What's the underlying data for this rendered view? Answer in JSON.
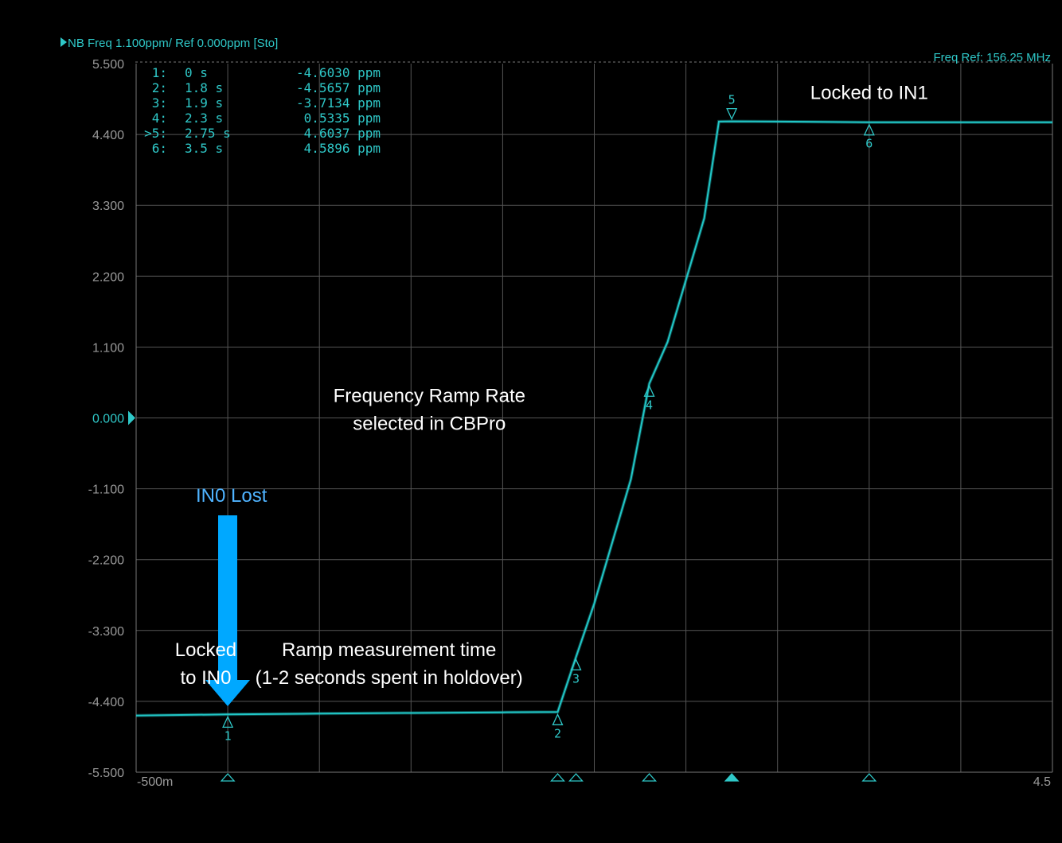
{
  "header": {
    "trace_label": "NB Freq 1.100ppm/ Ref 0.000ppm [Sto]",
    "freq_ref": "Freq Ref: 156.25 MHz"
  },
  "chart_data": {
    "type": "line",
    "title": "",
    "xlabel": "",
    "ylabel": "",
    "xlim": [
      -0.5,
      4.5
    ],
    "ylim": [
      -5.5,
      5.5
    ],
    "grid": true,
    "x_tick_labels": [
      "-500m",
      "4.5"
    ],
    "y_ticks": [
      {
        "value": 5.5,
        "label": "5.500"
      },
      {
        "value": 4.4,
        "label": "4.400"
      },
      {
        "value": 3.3,
        "label": "3.300"
      },
      {
        "value": 2.2,
        "label": "2.200"
      },
      {
        "value": 1.1,
        "label": "1.100"
      },
      {
        "value": 0.0,
        "label": "0.000"
      },
      {
        "value": -1.1,
        "label": "-1.100"
      },
      {
        "value": -2.2,
        "label": "-2.200"
      },
      {
        "value": -3.3,
        "label": "-3.300"
      },
      {
        "value": -4.4,
        "label": "-4.400"
      },
      {
        "value": -5.5,
        "label": "-5.500"
      }
    ],
    "reference_value_label": "0.000",
    "series": [
      {
        "x": [
          -0.5,
          0.0,
          0.5,
          1.0,
          1.5,
          1.8,
          1.9,
          2.0,
          2.2,
          2.3,
          2.4,
          2.6,
          2.68,
          2.75,
          3.0,
          3.5,
          4.0,
          4.5
        ],
        "y": [
          -4.62,
          -4.603,
          -4.59,
          -4.58,
          -4.57,
          -4.5657,
          -3.7134,
          -2.88,
          -0.95,
          0.5335,
          1.18,
          3.1,
          4.6,
          4.6037,
          4.6,
          4.5896,
          4.59,
          4.59
        ]
      }
    ],
    "markers": [
      {
        "id": "1",
        "label": "1:",
        "x_text": "0 s",
        "y_text": "-4.6030 ppm",
        "x": 0.0,
        "y": -4.603,
        "active": false
      },
      {
        "id": "2",
        "label": "2:",
        "x_text": "1.8 s",
        "y_text": "-4.5657 ppm",
        "x": 1.8,
        "y": -4.5657,
        "active": false
      },
      {
        "id": "3",
        "label": "3:",
        "x_text": "1.9 s",
        "y_text": "-3.7134 ppm",
        "x": 1.9,
        "y": -3.7134,
        "active": false
      },
      {
        "id": "4",
        "label": "4:",
        "x_text": "2.3 s",
        "y_text": "0.5335 ppm",
        "x": 2.3,
        "y": 0.5335,
        "active": false
      },
      {
        "id": "5",
        "label": ">5:",
        "x_text": "2.75 s",
        "y_text": "4.6037 ppm",
        "x": 2.75,
        "y": 4.6037,
        "active": true
      },
      {
        "id": "6",
        "label": "6:",
        "x_text": "3.5 s",
        "y_text": "4.5896 ppm",
        "x": 3.5,
        "y": 4.5896,
        "active": false
      }
    ],
    "annotations": [
      {
        "name": "locked-in1-annotation",
        "lines": [
          "Locked to IN1"
        ],
        "x": 3.5,
        "y": 4.95,
        "align": "middle",
        "color": "#ffffff"
      },
      {
        "name": "ramp-rate-annotation",
        "lines": [
          "Frequency Ramp Rate",
          "selected in CBPro"
        ],
        "x": 1.1,
        "y": 0.25,
        "align": "middle",
        "color": "#ffffff"
      },
      {
        "name": "in0-lost-annotation",
        "lines": [
          "IN0 Lost"
        ],
        "x": 0.02,
        "y": -1.3,
        "align": "middle",
        "color": "#4fb3ff"
      },
      {
        "name": "locked-in0-annotation",
        "lines": [
          "Locked",
          "to IN0"
        ],
        "x": -0.12,
        "y": -3.7,
        "align": "middle",
        "color": "#ffffff"
      },
      {
        "name": "ramp-measurement-annotation",
        "lines": [
          "Ramp measurement time",
          "(1-2 seconds spent in holdover)"
        ],
        "x": 0.88,
        "y": -3.7,
        "align": "middle",
        "color": "#ffffff"
      }
    ],
    "colors": {
      "trace": "#21c6c6",
      "text": "#2fc8c8",
      "grid": "#555555",
      "frame": "#777777",
      "arrow": "#00a8ff",
      "background": "#000000"
    }
  }
}
